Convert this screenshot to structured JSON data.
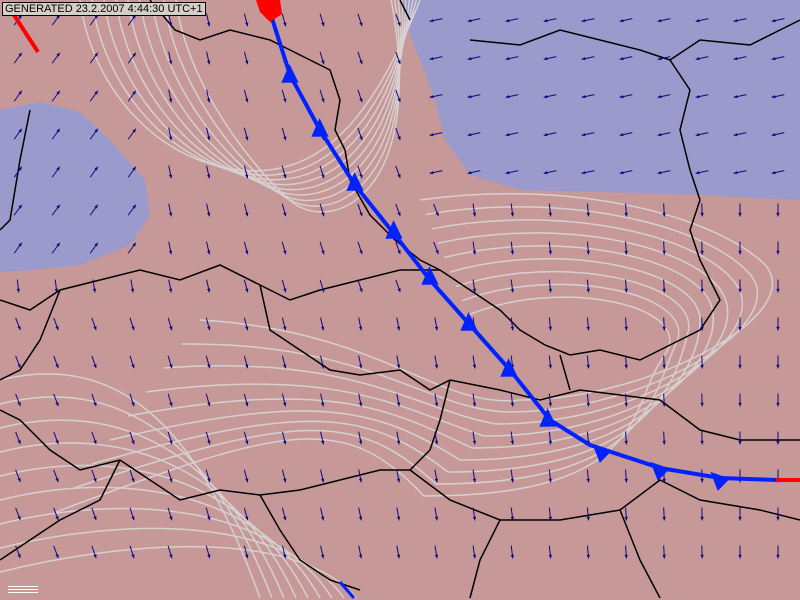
{
  "stamp": "GENERATED 23.2.2007 4:44:30 UTC+1",
  "colors": {
    "background": "#c79898",
    "low_region": "#9a9acc",
    "contour": "#d6d0d0",
    "border": "#000000",
    "wind_arrow": "#0a0a80",
    "cold_front": "#0022ff",
    "warm_front": "#ff0000"
  },
  "layers": [
    "isobars",
    "country-borders",
    "wind-arrows",
    "cold-front",
    "warm-front"
  ]
}
